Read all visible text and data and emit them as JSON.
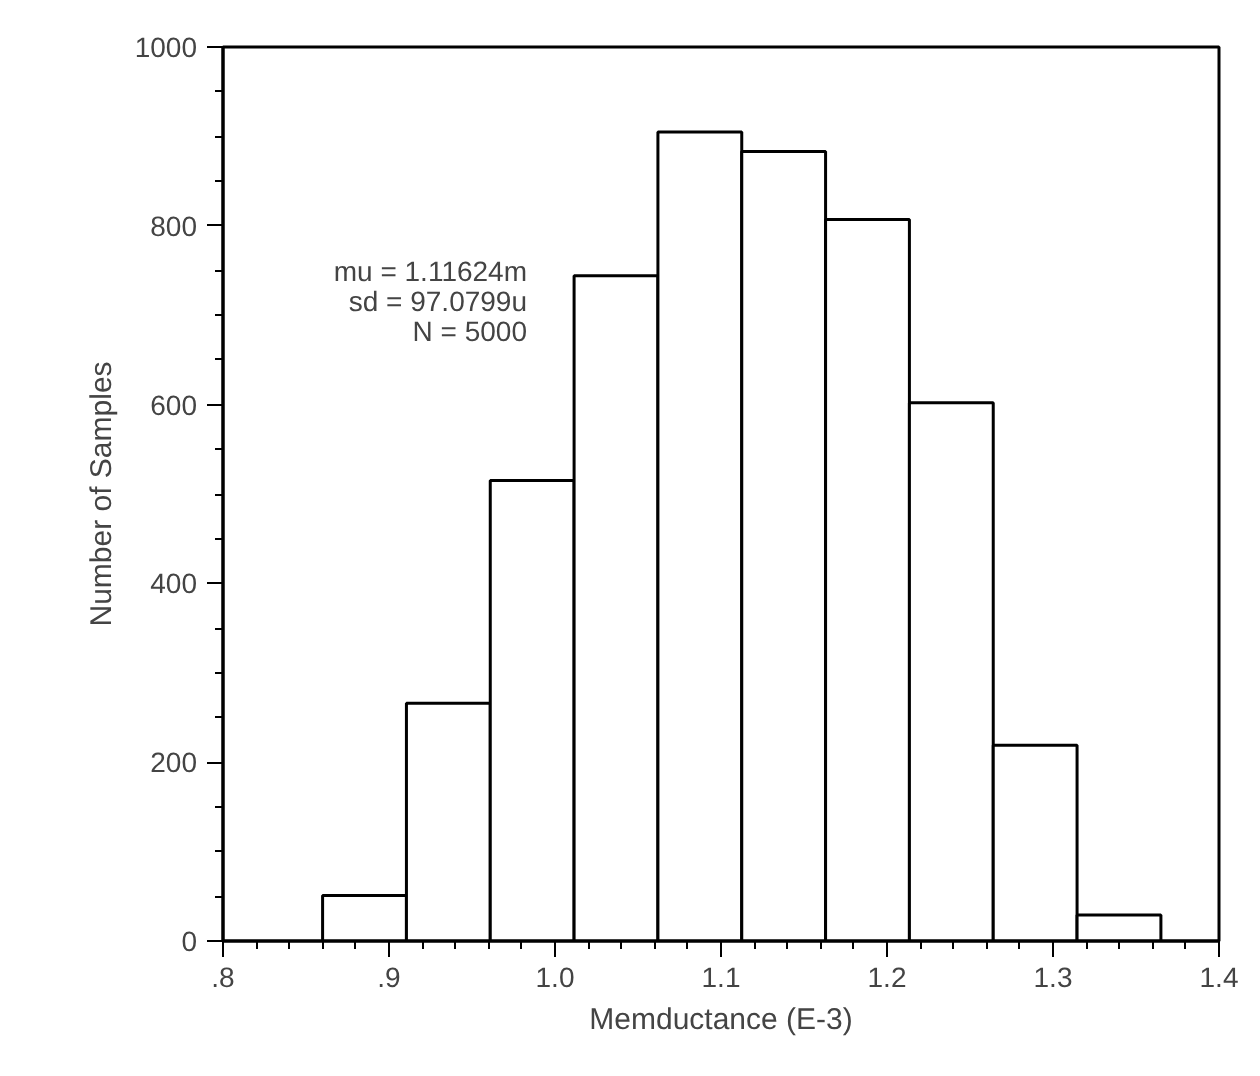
{
  "chart_data": {
    "type": "histogram",
    "xlabel": "Memductance (E-3)",
    "ylabel": "Number of Samples",
    "bins": [
      0.86,
      0.9105,
      0.961,
      1.0115,
      1.062,
      1.1125,
      1.163,
      1.2135,
      1.264,
      1.3145,
      1.365
    ],
    "values": [
      51,
      266,
      515,
      744,
      905,
      883,
      807,
      602,
      219,
      29
    ],
    "color": "#ffffff",
    "xlim": [
      0.8,
      1.4
    ],
    "xticks": [
      {
        "value": 0.8,
        "label": ".8"
      },
      {
        "value": 0.9,
        "label": ".9"
      },
      {
        "value": 1.0,
        "label": "1.0"
      },
      {
        "value": 1.1,
        "label": "1.1"
      },
      {
        "value": 1.2,
        "label": "1.2"
      },
      {
        "value": 1.3,
        "label": "1.3"
      },
      {
        "value": 1.4,
        "label": "1.4"
      }
    ],
    "ylim": [
      0,
      1000
    ],
    "yticks": [
      0,
      200,
      400,
      600,
      800,
      1000
    ],
    "annotations": [
      "mu = 1.11624m",
      "sd = 97.0799u",
      "N = 5000"
    ]
  }
}
